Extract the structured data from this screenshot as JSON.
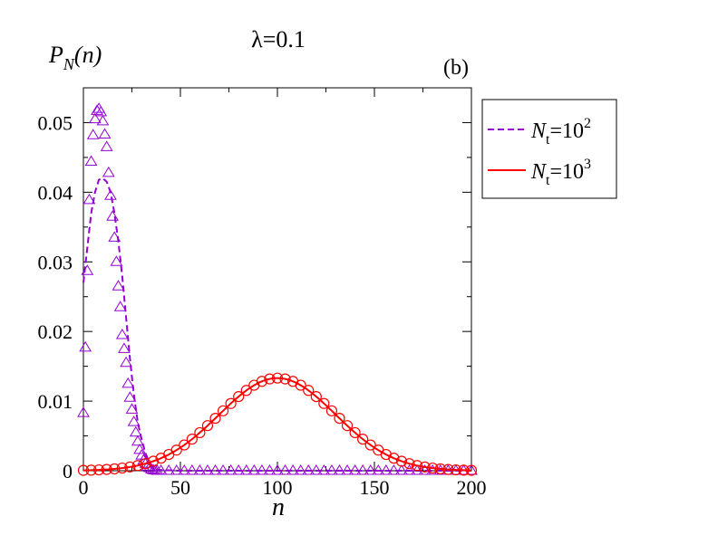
{
  "chart_data": {
    "type": "line",
    "title": "λ=0.1",
    "panel_label": "(b)",
    "ylabel_main": "P",
    "ylabel_sub": "N",
    "ylabel_arg": "(n)",
    "xlabel": "n",
    "xlim": [
      0,
      200
    ],
    "ylim": [
      0,
      0.055
    ],
    "xticks": [
      0,
      50,
      100,
      150,
      200
    ],
    "xtick_labels": [
      "0",
      "50",
      "100",
      "150",
      "200"
    ],
    "yticks": [
      0,
      0.01,
      0.02,
      0.03,
      0.04,
      0.05
    ],
    "ytick_labels": [
      "0",
      "0.01",
      "0.02",
      "0.03",
      "0.04",
      "0.05"
    ],
    "legend_position": "right-outside-top",
    "series": [
      {
        "name": "Nt=10^2 (curve)",
        "legend_main": "N",
        "legend_sub": "t",
        "legend_eq": "=10",
        "legend_sup": "2",
        "color": "#9400d3",
        "style": "dashed",
        "marker": "triangle",
        "x": [
          0,
          2,
          4,
          6,
          8,
          10,
          12,
          14,
          16,
          18,
          20,
          22,
          24,
          26,
          28,
          30,
          32,
          34,
          36,
          38,
          40,
          50,
          100,
          150,
          200
        ],
        "y": [
          0.027,
          0.032,
          0.037,
          0.04,
          0.0418,
          0.042,
          0.0415,
          0.04,
          0.037,
          0.033,
          0.028,
          0.022,
          0.016,
          0.011,
          0.007,
          0.0045,
          0.0025,
          0.0012,
          0.0005,
          0.0002,
          0.0001,
          0.0,
          0.0,
          0.0,
          0.0
        ]
      },
      {
        "name": "Nt=10^2 (markers)",
        "color": "#9400d3",
        "marker": "triangle",
        "x": [
          0,
          1,
          2,
          3,
          4,
          5,
          6,
          7,
          8,
          9,
          10,
          11,
          12,
          13,
          14,
          15,
          16,
          17,
          18,
          19,
          20,
          21,
          22,
          23,
          24,
          25,
          26,
          27,
          28,
          29,
          30,
          31,
          32,
          33,
          34,
          35,
          36,
          37,
          38,
          40,
          44,
          48,
          52,
          56,
          60,
          64,
          68,
          72,
          76,
          80,
          84,
          88,
          92,
          96,
          100,
          104,
          108,
          112,
          116,
          120,
          124,
          128,
          132,
          136,
          140,
          144,
          148,
          152,
          156,
          160,
          164,
          168,
          172,
          176,
          180,
          184,
          188,
          192,
          196,
          200
        ],
        "y": [
          0.0083,
          0.0177,
          0.0287,
          0.0389,
          0.0444,
          0.0482,
          0.0505,
          0.0517,
          0.052,
          0.0515,
          0.0502,
          0.0483,
          0.0465,
          0.0428,
          0.0395,
          0.0365,
          0.0335,
          0.03,
          0.0265,
          0.0235,
          0.0195,
          0.0175,
          0.0155,
          0.0125,
          0.0105,
          0.0088,
          0.007,
          0.0055,
          0.0042,
          0.003,
          0.0022,
          0.0015,
          0.001,
          0.0006,
          0.0004,
          0.0002,
          0.0001,
          5e-05,
          0.0,
          0.0,
          0.0,
          0.0,
          0.0,
          0.0,
          0.0,
          0.0,
          0.0,
          0.0,
          0.0,
          0.0,
          0.0,
          0.0,
          0.0,
          0.0,
          0.0,
          0.0,
          0.0,
          0.0,
          0.0,
          0.0,
          0.0,
          0.0,
          0.0,
          0.0,
          0.0,
          0.0,
          0.0,
          0.0,
          0.0,
          0.0,
          0.0,
          0.0,
          0.0,
          0.0,
          0.0,
          0.0,
          0.0,
          0.0,
          0.0,
          0.0
        ]
      },
      {
        "name": "Nt=10^3 (curve)",
        "legend_main": "N",
        "legend_sub": "t",
        "legend_eq": "=10",
        "legend_sup": "3",
        "color": "#ff0000",
        "style": "solid",
        "marker": "circle",
        "gaussian": {
          "mean": 100,
          "sd": 30,
          "peak": 0.0133
        },
        "x_range": [
          0,
          200
        ],
        "marker_step": 4
      }
    ]
  }
}
